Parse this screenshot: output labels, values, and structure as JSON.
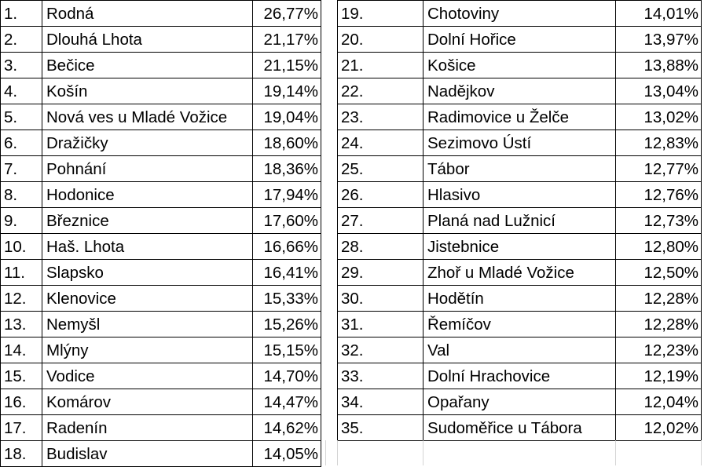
{
  "left_table": [
    {
      "rank": "1.",
      "name": "Rodná",
      "pct": "26,77%"
    },
    {
      "rank": "2.",
      "name": "Dlouhá Lhota",
      "pct": "21,17%"
    },
    {
      "rank": "3.",
      "name": "Bečice",
      "pct": "21,15%"
    },
    {
      "rank": "4.",
      "name": "Košín",
      "pct": "19,14%"
    },
    {
      "rank": "5.",
      "name": "Nová ves u Mladé Vožice",
      "pct": "19,04%"
    },
    {
      "rank": "6.",
      "name": "Dražičky",
      "pct": "18,60%"
    },
    {
      "rank": "7.",
      "name": "Pohnání",
      "pct": "18,36%"
    },
    {
      "rank": "8.",
      "name": "Hodonice",
      "pct": "17,94%"
    },
    {
      "rank": "9.",
      "name": "Březnice",
      "pct": "17,60%"
    },
    {
      "rank": "10.",
      "name": "Haš. Lhota",
      "pct": "16,66%"
    },
    {
      "rank": "11.",
      "name": "Slapsko",
      "pct": "16,41%"
    },
    {
      "rank": "12.",
      "name": "Klenovice",
      "pct": "15,33%"
    },
    {
      "rank": "13.",
      "name": "Nemyšl",
      "pct": "15,26%"
    },
    {
      "rank": "14.",
      "name": "Mlýny",
      "pct": "15,15%"
    },
    {
      "rank": "15.",
      "name": "Vodice",
      "pct": "14,70%"
    },
    {
      "rank": "16.",
      "name": "Komárov",
      "pct": "14,47%"
    },
    {
      "rank": "17.",
      "name": "Radenín",
      "pct": "14,62%"
    },
    {
      "rank": "18.",
      "name": "Budislav",
      "pct": "14,05%"
    }
  ],
  "right_table": [
    {
      "rank": "19.",
      "name": "Chotoviny",
      "pct": "14,01%"
    },
    {
      "rank": "20.",
      "name": "Dolní Hořice",
      "pct": "13,97%"
    },
    {
      "rank": "21.",
      "name": "Košice",
      "pct": "13,88%"
    },
    {
      "rank": "22.",
      "name": "Nadějkov",
      "pct": "13,04%"
    },
    {
      "rank": "23.",
      "name": "Radimovice u Želče",
      "pct": "13,02%"
    },
    {
      "rank": "24.",
      "name": "Sezimovo Ústí",
      "pct": "12,83%"
    },
    {
      "rank": "25.",
      "name": "Tábor",
      "pct": "12,77%"
    },
    {
      "rank": "26.",
      "name": "Hlasivo",
      "pct": "12,76%"
    },
    {
      "rank": "27.",
      "name": "Planá nad Lužnicí",
      "pct": "12,73%"
    },
    {
      "rank": "28.",
      "name": "Jistebnice",
      "pct": "12,80%"
    },
    {
      "rank": "29.",
      "name": "Zhoř u Mladé Vožice",
      "pct": "12,50%"
    },
    {
      "rank": "30.",
      "name": "Hodětín",
      "pct": "12,28%"
    },
    {
      "rank": "31.",
      "name": "Řemíčov",
      "pct": "12,28%"
    },
    {
      "rank": "32.",
      "name": "Val",
      "pct": "12,23%"
    },
    {
      "rank": "33.",
      "name": "Dolní Hrachovice",
      "pct": "12,19%"
    },
    {
      "rank": "34.",
      "name": "Opařany",
      "pct": "12,04%"
    },
    {
      "rank": "35.",
      "name": " Sudoměřice u Tábora",
      "pct": "12,02%"
    }
  ]
}
